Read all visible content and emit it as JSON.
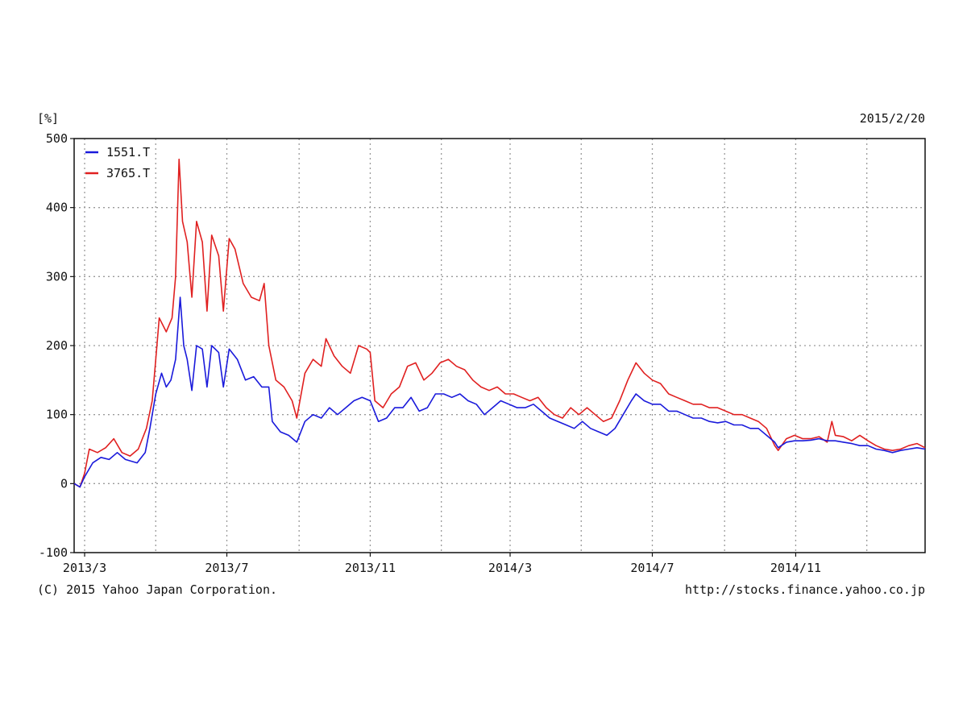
{
  "header": {
    "unit_label": "[%]",
    "date": "2015/2/20"
  },
  "footer": {
    "copyright": "(C) 2015 Yahoo Japan Corporation.",
    "url": "http://stocks.finance.yahoo.co.jp"
  },
  "colors": {
    "series_blue": "#1a1adb",
    "series_red": "#e02020",
    "grid": "#9a9a9a",
    "axis": "#111111"
  },
  "chart_data": {
    "type": "line",
    "title": "",
    "xlabel": "",
    "ylabel": "[%]",
    "ylim": [
      -100,
      500
    ],
    "yticks": [
      -100,
      0,
      100,
      200,
      300,
      400,
      500
    ],
    "xlim": [
      "2013-02-20",
      "2015-02-20"
    ],
    "xticks": [
      {
        "label": "2013/3",
        "date": "2013-03-01"
      },
      {
        "label": "2013/7",
        "date": "2013-07-01"
      },
      {
        "label": "2013/11",
        "date": "2013-11-01"
      },
      {
        "label": "2014/3",
        "date": "2014-03-01"
      },
      {
        "label": "2014/7",
        "date": "2014-07-01"
      },
      {
        "label": "2014/11",
        "date": "2014-11-01"
      }
    ],
    "grid": true,
    "legend_position": "top-left",
    "series": [
      {
        "name": "1551.T",
        "color": "#1a1adb",
        "points": [
          [
            "2013-02-20",
            0
          ],
          [
            "2013-02-25",
            -5
          ],
          [
            "2013-03-01",
            10
          ],
          [
            "2013-03-08",
            30
          ],
          [
            "2013-03-15",
            38
          ],
          [
            "2013-03-22",
            35
          ],
          [
            "2013-03-29",
            45
          ],
          [
            "2013-04-05",
            35
          ],
          [
            "2013-04-15",
            30
          ],
          [
            "2013-04-22",
            45
          ],
          [
            "2013-04-26",
            80
          ],
          [
            "2013-05-01",
            130
          ],
          [
            "2013-05-06",
            160
          ],
          [
            "2013-05-10",
            140
          ],
          [
            "2013-05-14",
            150
          ],
          [
            "2013-05-18",
            180
          ],
          [
            "2013-05-22",
            270
          ],
          [
            "2013-05-25",
            200
          ],
          [
            "2013-05-28",
            180
          ],
          [
            "2013-06-01",
            135
          ],
          [
            "2013-06-05",
            200
          ],
          [
            "2013-06-10",
            195
          ],
          [
            "2013-06-14",
            140
          ],
          [
            "2013-06-18",
            200
          ],
          [
            "2013-06-24",
            190
          ],
          [
            "2013-06-28",
            140
          ],
          [
            "2013-07-03",
            195
          ],
          [
            "2013-07-10",
            180
          ],
          [
            "2013-07-17",
            150
          ],
          [
            "2013-07-24",
            155
          ],
          [
            "2013-07-31",
            140
          ],
          [
            "2013-08-06",
            140
          ],
          [
            "2013-08-09",
            90
          ],
          [
            "2013-08-16",
            75
          ],
          [
            "2013-08-23",
            70
          ],
          [
            "2013-08-30",
            60
          ],
          [
            "2013-09-06",
            90
          ],
          [
            "2013-09-13",
            100
          ],
          [
            "2013-09-20",
            95
          ],
          [
            "2013-09-27",
            110
          ],
          [
            "2013-10-04",
            100
          ],
          [
            "2013-10-11",
            110
          ],
          [
            "2013-10-18",
            120
          ],
          [
            "2013-10-25",
            125
          ],
          [
            "2013-11-01",
            120
          ],
          [
            "2013-11-08",
            90
          ],
          [
            "2013-11-15",
            95
          ],
          [
            "2013-11-22",
            110
          ],
          [
            "2013-11-29",
            110
          ],
          [
            "2013-12-06",
            125
          ],
          [
            "2013-12-13",
            105
          ],
          [
            "2013-12-20",
            110
          ],
          [
            "2013-12-27",
            130
          ],
          [
            "2014-01-03",
            130
          ],
          [
            "2014-01-10",
            125
          ],
          [
            "2014-01-17",
            130
          ],
          [
            "2014-01-24",
            120
          ],
          [
            "2014-01-31",
            115
          ],
          [
            "2014-02-07",
            100
          ],
          [
            "2014-02-14",
            110
          ],
          [
            "2014-02-21",
            120
          ],
          [
            "2014-02-28",
            115
          ],
          [
            "2014-03-07",
            110
          ],
          [
            "2014-03-14",
            110
          ],
          [
            "2014-03-21",
            115
          ],
          [
            "2014-03-28",
            105
          ],
          [
            "2014-04-04",
            95
          ],
          [
            "2014-04-11",
            90
          ],
          [
            "2014-04-18",
            85
          ],
          [
            "2014-04-25",
            80
          ],
          [
            "2014-05-02",
            90
          ],
          [
            "2014-05-09",
            80
          ],
          [
            "2014-05-16",
            75
          ],
          [
            "2014-05-23",
            70
          ],
          [
            "2014-05-30",
            80
          ],
          [
            "2014-06-06",
            100
          ],
          [
            "2014-06-13",
            120
          ],
          [
            "2014-06-17",
            130
          ],
          [
            "2014-06-24",
            120
          ],
          [
            "2014-07-01",
            115
          ],
          [
            "2014-07-08",
            115
          ],
          [
            "2014-07-15",
            105
          ],
          [
            "2014-07-22",
            105
          ],
          [
            "2014-07-29",
            100
          ],
          [
            "2014-08-05",
            95
          ],
          [
            "2014-08-12",
            95
          ],
          [
            "2014-08-19",
            90
          ],
          [
            "2014-08-26",
            88
          ],
          [
            "2014-09-02",
            90
          ],
          [
            "2014-09-09",
            85
          ],
          [
            "2014-09-16",
            85
          ],
          [
            "2014-09-23",
            80
          ],
          [
            "2014-09-30",
            80
          ],
          [
            "2014-10-07",
            70
          ],
          [
            "2014-10-14",
            60
          ],
          [
            "2014-10-17",
            52
          ],
          [
            "2014-10-24",
            60
          ],
          [
            "2014-10-31",
            62
          ],
          [
            "2014-11-07",
            62
          ],
          [
            "2014-11-14",
            63
          ],
          [
            "2014-11-21",
            65
          ],
          [
            "2014-11-28",
            62
          ],
          [
            "2014-12-05",
            62
          ],
          [
            "2014-12-12",
            60
          ],
          [
            "2014-12-19",
            58
          ],
          [
            "2014-12-26",
            55
          ],
          [
            "2015-01-02",
            55
          ],
          [
            "2015-01-09",
            50
          ],
          [
            "2015-01-16",
            48
          ],
          [
            "2015-01-23",
            45
          ],
          [
            "2015-01-30",
            48
          ],
          [
            "2015-02-06",
            50
          ],
          [
            "2015-02-13",
            52
          ],
          [
            "2015-02-20",
            50
          ]
        ]
      },
      {
        "name": "3765.T",
        "color": "#e02020",
        "points": [
          [
            "2013-02-20",
            0
          ],
          [
            "2013-02-25",
            -5
          ],
          [
            "2013-03-01",
            15
          ],
          [
            "2013-03-05",
            50
          ],
          [
            "2013-03-12",
            45
          ],
          [
            "2013-03-19",
            52
          ],
          [
            "2013-03-26",
            65
          ],
          [
            "2013-04-02",
            45
          ],
          [
            "2013-04-09",
            40
          ],
          [
            "2013-04-16",
            50
          ],
          [
            "2013-04-23",
            80
          ],
          [
            "2013-04-28",
            120
          ],
          [
            "2013-05-01",
            180
          ],
          [
            "2013-05-04",
            240
          ],
          [
            "2013-05-10",
            220
          ],
          [
            "2013-05-15",
            240
          ],
          [
            "2013-05-18",
            300
          ],
          [
            "2013-05-21",
            470
          ],
          [
            "2013-05-24",
            380
          ],
          [
            "2013-05-28",
            350
          ],
          [
            "2013-06-01",
            270
          ],
          [
            "2013-06-05",
            380
          ],
          [
            "2013-06-10",
            350
          ],
          [
            "2013-06-14",
            250
          ],
          [
            "2013-06-18",
            360
          ],
          [
            "2013-06-24",
            330
          ],
          [
            "2013-06-28",
            250
          ],
          [
            "2013-07-03",
            355
          ],
          [
            "2013-07-08",
            340
          ],
          [
            "2013-07-15",
            290
          ],
          [
            "2013-07-22",
            270
          ],
          [
            "2013-07-29",
            265
          ],
          [
            "2013-08-02",
            290
          ],
          [
            "2013-08-06",
            200
          ],
          [
            "2013-08-12",
            150
          ],
          [
            "2013-08-19",
            140
          ],
          [
            "2013-08-26",
            120
          ],
          [
            "2013-08-30",
            95
          ],
          [
            "2013-09-06",
            160
          ],
          [
            "2013-09-13",
            180
          ],
          [
            "2013-09-20",
            170
          ],
          [
            "2013-09-24",
            210
          ],
          [
            "2013-10-01",
            185
          ],
          [
            "2013-10-08",
            170
          ],
          [
            "2013-10-15",
            160
          ],
          [
            "2013-10-22",
            200
          ],
          [
            "2013-10-29",
            195
          ],
          [
            "2013-11-01",
            190
          ],
          [
            "2013-11-05",
            120
          ],
          [
            "2013-11-12",
            110
          ],
          [
            "2013-11-19",
            130
          ],
          [
            "2013-11-26",
            140
          ],
          [
            "2013-12-03",
            170
          ],
          [
            "2013-12-10",
            175
          ],
          [
            "2013-12-17",
            150
          ],
          [
            "2013-12-24",
            160
          ],
          [
            "2013-12-31",
            175
          ],
          [
            "2014-01-07",
            180
          ],
          [
            "2014-01-14",
            170
          ],
          [
            "2014-01-21",
            165
          ],
          [
            "2014-01-28",
            150
          ],
          [
            "2014-02-04",
            140
          ],
          [
            "2014-02-11",
            135
          ],
          [
            "2014-02-18",
            140
          ],
          [
            "2014-02-25",
            130
          ],
          [
            "2014-03-04",
            130
          ],
          [
            "2014-03-11",
            125
          ],
          [
            "2014-03-18",
            120
          ],
          [
            "2014-03-25",
            125
          ],
          [
            "2014-04-01",
            110
          ],
          [
            "2014-04-08",
            100
          ],
          [
            "2014-04-15",
            95
          ],
          [
            "2014-04-22",
            110
          ],
          [
            "2014-04-29",
            100
          ],
          [
            "2014-05-06",
            110
          ],
          [
            "2014-05-13",
            100
          ],
          [
            "2014-05-20",
            90
          ],
          [
            "2014-05-27",
            95
          ],
          [
            "2014-06-03",
            120
          ],
          [
            "2014-06-10",
            150
          ],
          [
            "2014-06-17",
            175
          ],
          [
            "2014-06-24",
            160
          ],
          [
            "2014-07-01",
            150
          ],
          [
            "2014-07-08",
            145
          ],
          [
            "2014-07-15",
            130
          ],
          [
            "2014-07-22",
            125
          ],
          [
            "2014-07-29",
            120
          ],
          [
            "2014-08-05",
            115
          ],
          [
            "2014-08-12",
            115
          ],
          [
            "2014-08-19",
            110
          ],
          [
            "2014-08-26",
            110
          ],
          [
            "2014-09-02",
            105
          ],
          [
            "2014-09-09",
            100
          ],
          [
            "2014-09-16",
            100
          ],
          [
            "2014-09-23",
            95
          ],
          [
            "2014-09-30",
            90
          ],
          [
            "2014-10-07",
            80
          ],
          [
            "2014-10-14",
            55
          ],
          [
            "2014-10-17",
            48
          ],
          [
            "2014-10-24",
            65
          ],
          [
            "2014-10-31",
            70
          ],
          [
            "2014-11-07",
            65
          ],
          [
            "2014-11-14",
            65
          ],
          [
            "2014-11-21",
            68
          ],
          [
            "2014-11-28",
            60
          ],
          [
            "2014-12-02",
            90
          ],
          [
            "2014-12-05",
            70
          ],
          [
            "2014-12-12",
            68
          ],
          [
            "2014-12-19",
            62
          ],
          [
            "2014-12-26",
            70
          ],
          [
            "2015-01-02",
            62
          ],
          [
            "2015-01-09",
            55
          ],
          [
            "2015-01-16",
            50
          ],
          [
            "2015-01-23",
            48
          ],
          [
            "2015-01-30",
            50
          ],
          [
            "2015-02-06",
            55
          ],
          [
            "2015-02-13",
            58
          ],
          [
            "2015-02-20",
            52
          ]
        ]
      }
    ]
  }
}
